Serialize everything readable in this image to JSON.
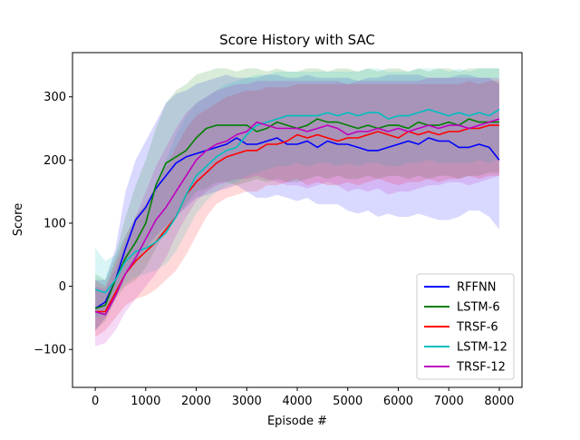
{
  "chart_data": {
    "type": "line",
    "title": "Score History with SAC",
    "xlabel": "Episode #",
    "ylabel": "Score",
    "xlim": [
      -450,
      8450
    ],
    "ylim": [
      -160,
      370
    ],
    "xticks": [
      0,
      1000,
      2000,
      3000,
      4000,
      5000,
      6000,
      7000,
      8000
    ],
    "yticks": [
      -100,
      0,
      100,
      200,
      300
    ],
    "grid": false,
    "legend_position": "lower-right",
    "x": [
      0,
      200,
      400,
      600,
      800,
      1000,
      1200,
      1400,
      1600,
      1800,
      2000,
      2200,
      2400,
      2600,
      2800,
      3000,
      3200,
      3400,
      3600,
      3800,
      4000,
      4200,
      4400,
      4600,
      4800,
      5000,
      5200,
      5400,
      5600,
      5800,
      6000,
      6200,
      6400,
      6600,
      6800,
      7000,
      7200,
      7400,
      7600,
      7800,
      8000
    ],
    "series": [
      {
        "name": "RFFNN",
        "color": "#0000ff",
        "mean": [
          -35,
          -25,
          10,
          60,
          105,
          125,
          155,
          175,
          195,
          205,
          210,
          215,
          220,
          225,
          235,
          225,
          225,
          230,
          235,
          225,
          225,
          230,
          220,
          230,
          225,
          225,
          220,
          215,
          215,
          220,
          225,
          230,
          225,
          235,
          230,
          230,
          220,
          220,
          225,
          220,
          200
        ],
        "lower": [
          -70,
          -50,
          -20,
          20,
          40,
          60,
          80,
          95,
          110,
          125,
          140,
          145,
          150,
          155,
          160,
          150,
          140,
          140,
          145,
          140,
          135,
          140,
          130,
          130,
          130,
          120,
          115,
          120,
          110,
          115,
          110,
          110,
          115,
          110,
          105,
          105,
          110,
          120,
          120,
          110,
          90
        ],
        "upper": [
          10,
          10,
          60,
          150,
          200,
          230,
          260,
          290,
          305,
          310,
          320,
          325,
          330,
          335,
          330,
          330,
          330,
          335,
          335,
          330,
          330,
          335,
          330,
          330,
          330,
          330,
          325,
          330,
          330,
          335,
          335,
          335,
          335,
          330,
          330,
          330,
          335,
          335,
          330,
          330,
          320
        ]
      },
      {
        "name": "LSTM-6",
        "color": "#008000",
        "mean": [
          -35,
          -30,
          10,
          45,
          70,
          100,
          160,
          195,
          205,
          215,
          235,
          250,
          255,
          255,
          255,
          255,
          245,
          250,
          260,
          255,
          250,
          255,
          265,
          260,
          260,
          255,
          250,
          255,
          250,
          255,
          255,
          250,
          260,
          255,
          255,
          260,
          255,
          265,
          260,
          260,
          260
        ],
        "lower": [
          -70,
          -55,
          -20,
          0,
          10,
          30,
          60,
          90,
          110,
          130,
          150,
          155,
          165,
          165,
          160,
          165,
          170,
          165,
          170,
          165,
          165,
          170,
          175,
          170,
          175,
          170,
          170,
          175,
          170,
          175,
          175,
          170,
          175,
          170,
          175,
          175,
          170,
          175,
          175,
          180,
          180
        ],
        "upper": [
          20,
          10,
          50,
          110,
          160,
          200,
          250,
          290,
          310,
          320,
          335,
          340,
          345,
          345,
          340,
          345,
          345,
          340,
          345,
          340,
          340,
          345,
          345,
          340,
          345,
          345,
          340,
          345,
          340,
          345,
          345,
          340,
          345,
          340,
          345,
          345,
          340,
          345,
          345,
          345,
          345
        ]
      },
      {
        "name": "TRSF-6",
        "color": "#ff0000",
        "mean": [
          -40,
          -40,
          -10,
          20,
          40,
          55,
          70,
          90,
          110,
          145,
          165,
          180,
          195,
          205,
          210,
          215,
          215,
          225,
          225,
          230,
          240,
          235,
          240,
          235,
          230,
          235,
          235,
          240,
          245,
          240,
          235,
          245,
          240,
          245,
          240,
          245,
          245,
          250,
          250,
          255,
          255
        ],
        "lower": [
          -80,
          -70,
          -50,
          -30,
          -20,
          -15,
          -5,
          10,
          25,
          50,
          80,
          110,
          130,
          140,
          145,
          150,
          150,
          160,
          160,
          165,
          170,
          160,
          165,
          160,
          160,
          165,
          160,
          165,
          170,
          165,
          160,
          165,
          165,
          170,
          165,
          170,
          170,
          175,
          170,
          175,
          175
        ],
        "upper": [
          10,
          0,
          40,
          80,
          110,
          130,
          160,
          190,
          220,
          250,
          270,
          280,
          290,
          300,
          305,
          310,
          310,
          315,
          315,
          315,
          320,
          320,
          320,
          320,
          320,
          320,
          320,
          320,
          320,
          320,
          320,
          320,
          320,
          320,
          320,
          320,
          320,
          325,
          320,
          325,
          325
        ]
      },
      {
        "name": "LSTM-12",
        "color": "#00bfbf",
        "mean": [
          -5,
          -10,
          10,
          40,
          55,
          60,
          70,
          85,
          110,
          145,
          175,
          190,
          205,
          215,
          220,
          240,
          255,
          260,
          265,
          270,
          270,
          270,
          270,
          275,
          270,
          275,
          270,
          275,
          275,
          265,
          270,
          270,
          275,
          280,
          275,
          270,
          275,
          270,
          275,
          270,
          280
        ],
        "lower": [
          -50,
          -45,
          -15,
          5,
          15,
          20,
          25,
          35,
          55,
          85,
          115,
          135,
          150,
          160,
          165,
          175,
          180,
          185,
          190,
          190,
          195,
          190,
          195,
          195,
          190,
          195,
          190,
          195,
          195,
          190,
          190,
          195,
          195,
          200,
          195,
          195,
          195,
          195,
          200,
          195,
          200
        ],
        "upper": [
          60,
          40,
          50,
          80,
          110,
          130,
          160,
          200,
          240,
          270,
          290,
          300,
          310,
          320,
          325,
          330,
          335,
          335,
          340,
          340,
          340,
          340,
          340,
          340,
          340,
          340,
          340,
          345,
          345,
          340,
          340,
          340,
          345,
          345,
          345,
          340,
          345,
          340,
          345,
          345,
          345
        ]
      },
      {
        "name": "TRSF-12",
        "color": "#bf00bf",
        "mean": [
          -40,
          -45,
          -15,
          20,
          45,
          75,
          105,
          125,
          150,
          175,
          200,
          215,
          225,
          230,
          240,
          245,
          260,
          255,
          250,
          250,
          250,
          245,
          250,
          255,
          250,
          240,
          245,
          245,
          250,
          245,
          250,
          245,
          250,
          255,
          250,
          255,
          255,
          250,
          255,
          260,
          265
        ],
        "lower": [
          -95,
          -90,
          -70,
          -40,
          -20,
          0,
          20,
          45,
          80,
          110,
          135,
          150,
          160,
          165,
          170,
          170,
          175,
          170,
          165,
          160,
          160,
          155,
          160,
          165,
          160,
          150,
          155,
          150,
          155,
          145,
          150,
          150,
          155,
          160,
          160,
          165,
          165,
          160,
          165,
          170,
          175
        ],
        "upper": [
          0,
          -5,
          30,
          70,
          110,
          150,
          190,
          220,
          250,
          275,
          290,
          300,
          310,
          315,
          320,
          320,
          325,
          325,
          325,
          325,
          325,
          325,
          325,
          325,
          325,
          320,
          325,
          325,
          325,
          325,
          325,
          325,
          325,
          330,
          330,
          330,
          330,
          330,
          330,
          330,
          330
        ]
      }
    ]
  }
}
